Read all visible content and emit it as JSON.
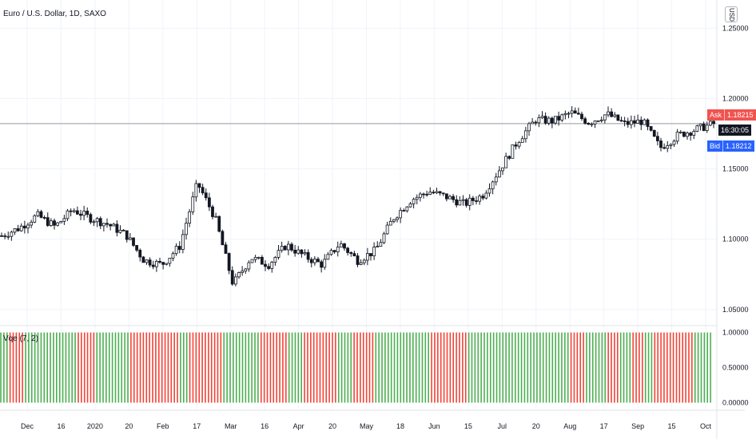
{
  "symbol": {
    "title": "Euro / U.S. Dollar, 1D, SAXO"
  },
  "currency": {
    "label": "USD"
  },
  "indicator": {
    "title": "Vqe (7, 2)"
  },
  "price_labels": {
    "ask": {
      "label": "Ask",
      "value": "1.18215",
      "color": "#f05350"
    },
    "bid": {
      "label": "Bid",
      "value": "1.18212",
      "color": "#2962ff"
    },
    "countdown": {
      "value": "16:30:05",
      "color": "#131722"
    }
  },
  "colors": {
    "up": "#26a69a",
    "down": "#ef5350",
    "candle": "#131722",
    "green_bar": "#4caf50",
    "red_bar": "#f44336"
  },
  "chart_data": [
    {
      "type": "candlestick",
      "title": "Euro / U.S. Dollar, 1D, SAXO",
      "y_ticks": [
        1.05,
        1.1,
        1.15,
        1.2,
        1.25
      ],
      "y_tick_labels": [
        "1.05000",
        "1.10000",
        "1.15000",
        "1.20000",
        "1.25000"
      ],
      "ylim": [
        1.042,
        1.27
      ],
      "horizontal_line": 1.18215,
      "x_tick_labels": [
        "Dec",
        "16",
        "2020",
        "20",
        "Feb",
        "17",
        "Mar",
        "16",
        "Apr",
        "20",
        "May",
        "18",
        "Jun",
        "15",
        "Jul",
        "20",
        "Aug",
        "17",
        "Sep",
        "15",
        "Oct"
      ],
      "close_series": [
        1.1025,
        1.108,
        1.117,
        1.109,
        1.121,
        1.115,
        1.1105,
        1.103,
        1.085,
        1.082,
        1.095,
        1.14,
        1.115,
        1.068,
        1.087,
        1.082,
        1.096,
        1.088,
        1.082,
        1.097,
        1.085,
        1.092,
        1.115,
        1.128,
        1.134,
        1.13,
        1.125,
        1.131,
        1.15,
        1.17,
        1.185,
        1.184,
        1.19,
        1.183,
        1.189,
        1.182,
        1.184,
        1.165,
        1.174,
        1.178,
        1.1821
      ]
    },
    {
      "type": "bar",
      "title": "Vqe (7, 2)",
      "y_ticks": [
        0.0,
        0.5,
        1.0
      ],
      "y_tick_labels": [
        "0.00000",
        "0.50000",
        "1.00000"
      ],
      "ylim": [
        -0.04,
        1.04
      ],
      "value": 1.0,
      "segments": [
        {
          "color": "green",
          "count": 3
        },
        {
          "color": "red",
          "count": 5
        },
        {
          "color": "green",
          "count": 17
        },
        {
          "color": "red",
          "count": 6
        },
        {
          "color": "green",
          "count": 11
        },
        {
          "color": "red",
          "count": 16
        },
        {
          "color": "green",
          "count": 3
        },
        {
          "color": "red",
          "count": 11
        },
        {
          "color": "green",
          "count": 12
        },
        {
          "color": "red",
          "count": 9
        },
        {
          "color": "green",
          "count": 5
        },
        {
          "color": "red",
          "count": 11
        },
        {
          "color": "green",
          "count": 5
        },
        {
          "color": "red",
          "count": 7
        },
        {
          "color": "green",
          "count": 18
        },
        {
          "color": "red",
          "count": 12
        },
        {
          "color": "green",
          "count": 33
        },
        {
          "color": "red",
          "count": 5
        },
        {
          "color": "green",
          "count": 7
        },
        {
          "color": "red",
          "count": 4
        },
        {
          "color": "green",
          "count": 4
        },
        {
          "color": "red",
          "count": 4
        },
        {
          "color": "green",
          "count": 3
        },
        {
          "color": "red",
          "count": 8
        },
        {
          "color": "red",
          "count": 5
        },
        {
          "color": "green",
          "count": 6
        }
      ]
    }
  ]
}
